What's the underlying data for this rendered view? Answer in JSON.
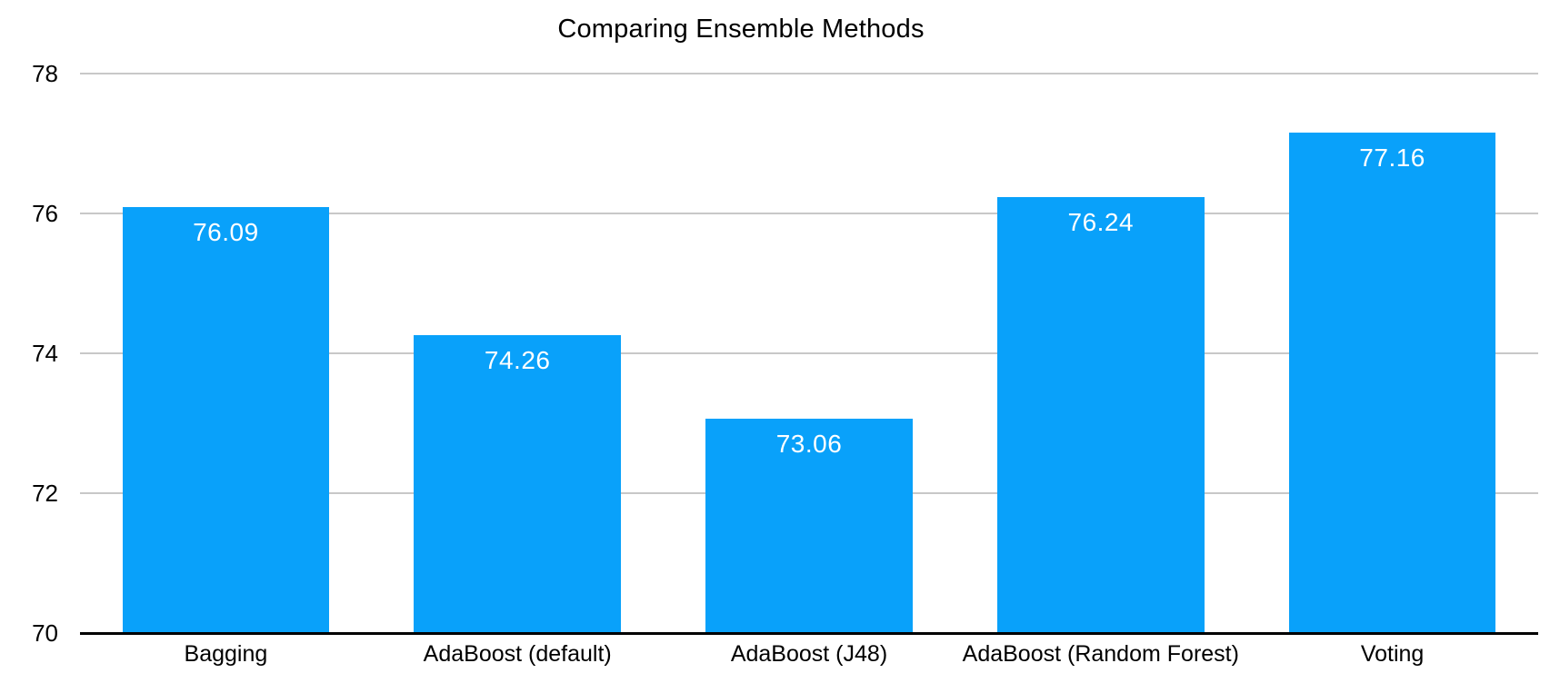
{
  "title": "Comparing Ensemble Methods",
  "colors": {
    "bar": "#09A1FA",
    "gridline": "#C8C8C8",
    "axis_line": "#000000",
    "value_label": "#FFFFFF",
    "tick_label": "#000000",
    "background": "#FFFFFF"
  },
  "chart_data": {
    "type": "bar",
    "title": "Comparing Ensemble Methods",
    "categories": [
      "Bagging",
      "AdaBoost (default)",
      "AdaBoost (J48)",
      "AdaBoost (Random Forest)",
      "Voting"
    ],
    "values": [
      76.09,
      74.26,
      73.06,
      76.24,
      77.16
    ],
    "value_labels": [
      "76.09",
      "74.26",
      "73.06",
      "76.24",
      "77.16"
    ],
    "xlabel": "",
    "ylabel": "",
    "ylim": [
      70,
      78
    ],
    "yticks": [
      78,
      76,
      74,
      72,
      70
    ],
    "grid": "horizontal-only",
    "legend": "none",
    "value_label_position": "inside-top",
    "bar_width_fraction": 0.71
  }
}
